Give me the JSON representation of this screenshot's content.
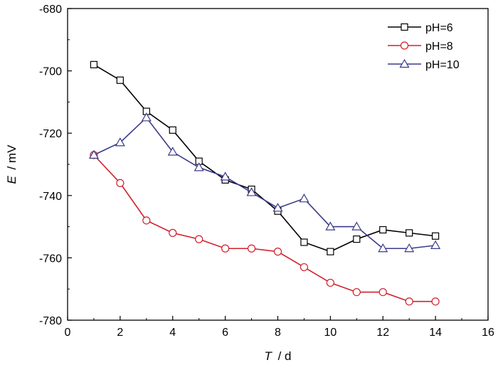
{
  "chart_data": {
    "type": "line",
    "title": "",
    "xlabel": {
      "symbol": "T",
      "unit": "/ d"
    },
    "ylabel": {
      "symbol": "E",
      "unit": "/ mV"
    },
    "xlim": [
      0,
      16
    ],
    "ylim": [
      -780,
      -680
    ],
    "xticks": [
      0,
      2,
      4,
      6,
      8,
      10,
      12,
      14,
      16
    ],
    "yticks": [
      -780,
      -760,
      -740,
      -720,
      -700,
      -680
    ],
    "grid": false,
    "legend_position": "top-right",
    "x": [
      1,
      2,
      3,
      4,
      5,
      6,
      7,
      8,
      9,
      10,
      11,
      12,
      13,
      14
    ],
    "series": [
      {
        "name": "pH=6",
        "color": "#000000",
        "marker": "square",
        "values": [
          -698,
          -703,
          -713,
          -719,
          -729,
          -735,
          -738,
          -745,
          -755,
          -758,
          -754,
          -751,
          -752,
          -753
        ]
      },
      {
        "name": "pH=8",
        "color": "#d0202c",
        "marker": "circle",
        "values": [
          -727,
          -736,
          -748,
          -752,
          -754,
          -757,
          -757,
          -758,
          -763,
          -768,
          -771,
          -771,
          -774,
          -774
        ]
      },
      {
        "name": "pH=10",
        "color": "#3a3a8c",
        "marker": "triangle",
        "values": [
          -727,
          -723,
          -715,
          -726,
          -731,
          -734,
          -739,
          -744,
          -741,
          -750,
          -750,
          -757,
          -757,
          -756
        ]
      }
    ]
  }
}
